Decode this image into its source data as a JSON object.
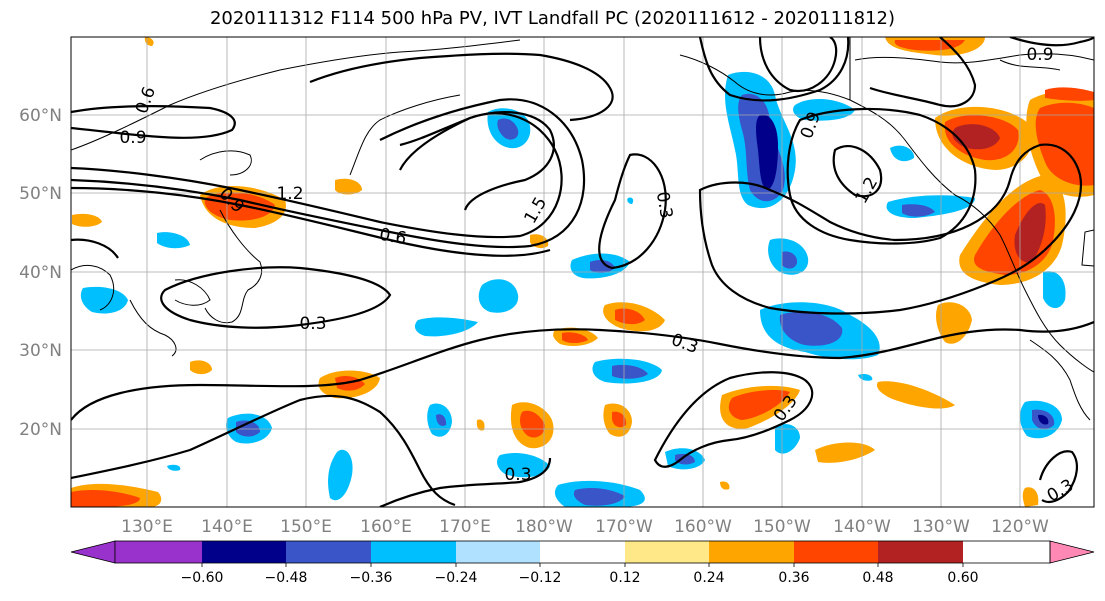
{
  "title": "2020111312 F114 500 hPa PV, IVT Landfall PC (2020111612 - 2020111812)",
  "map": {
    "lon_labels": [
      "130°E",
      "140°E",
      "150°E",
      "160°E",
      "170°E",
      "180°W",
      "170°W",
      "160°W",
      "150°W",
      "140°W",
      "130°W",
      "120°W"
    ],
    "lat_labels": [
      "60°N",
      "50°N",
      "40°N",
      "30°N",
      "20°N"
    ],
    "contour_labels": [
      "0.6",
      "0.9",
      "0.9",
      "1.2",
      "0.6",
      "1.5",
      "0.3",
      "0.3",
      "0.3",
      "0.3",
      "0.9",
      "1.2",
      "0.9",
      "0.3",
      "0.3"
    ],
    "grid": true
  },
  "colorbar": {
    "ticks": [
      "−0.60",
      "−0.48",
      "−0.36",
      "−0.24",
      "−0.12",
      "0.12",
      "0.24",
      "0.36",
      "0.48",
      "0.60"
    ],
    "colors": [
      "#9932cc",
      "#00008b",
      "#3a55c8",
      "#00bfff",
      "#b0e2ff",
      "#ffffff",
      "#fee887",
      "#ffa500",
      "#ff4500",
      "#b22222",
      "#ff88b4"
    ]
  }
}
